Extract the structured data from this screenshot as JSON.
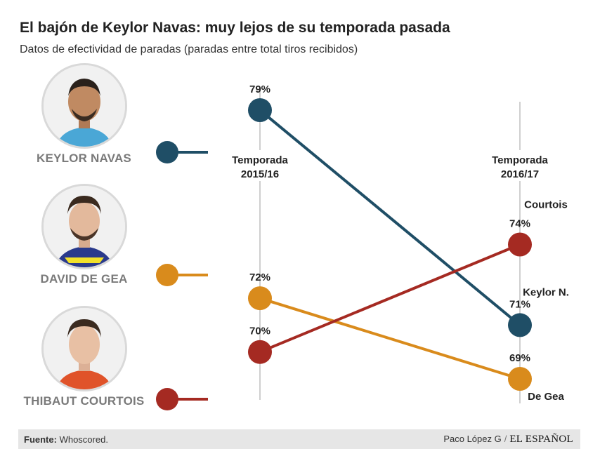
{
  "title": "El bajón de Keylor Navas: muy lejos de su temporada pasada",
  "subtitle": "Datos de efectividad de paradas (paradas entre total tiros recibidos)",
  "players": [
    {
      "name": "KEYLOR NAVAS",
      "color": "#1f4e66",
      "shirt": "#4aa7d6"
    },
    {
      "name": "DAVID DE GEA",
      "color": "#d98b1c",
      "shirt": "#2a3a8c"
    },
    {
      "name": "THIBAUT COURTOIS",
      "color": "#a52a22",
      "shirt": "#e0532a"
    }
  ],
  "chart_data": {
    "type": "line",
    "categories": [
      "Temporada 2015/16",
      "Temporada 2016/17"
    ],
    "category_lines": [
      [
        "Temporada",
        "2015/16"
      ],
      [
        "Temporada",
        "2016/17"
      ]
    ],
    "unit": "%",
    "series": [
      {
        "name": "KEYLOR NAVAS",
        "end_label": "Keylor N.",
        "color": "#1f4e66",
        "values": [
          79,
          71
        ]
      },
      {
        "name": "DAVID DE GEA",
        "end_label": "De Gea",
        "color": "#d98b1c",
        "values": [
          72,
          69
        ]
      },
      {
        "name": "THIBAUT COURTOIS",
        "end_label": "Courtois",
        "color": "#a52a22",
        "values": [
          70,
          74
        ]
      }
    ]
  },
  "footer": {
    "source_label": "Fuente:",
    "source_value": "Whoscored.",
    "author": "Paco López G",
    "separator": "/",
    "brand": "EL ESPAÑOL"
  }
}
